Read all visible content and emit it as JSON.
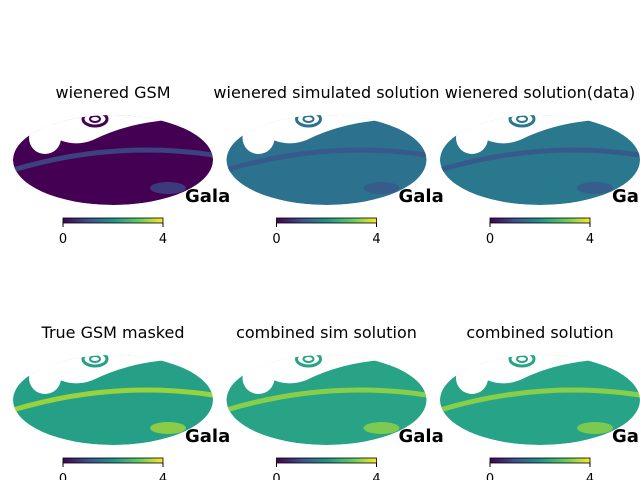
{
  "chart_data": [
    {
      "type": "map",
      "title": "wienered GSM",
      "fill": "#440154",
      "band": "#3b528b",
      "colorbar": {
        "lim": [
          0,
          4
        ],
        "ticks": [
          0,
          4
        ]
      },
      "annotation": "Gala"
    },
    {
      "type": "map",
      "title": "wienered simulated solution",
      "fill": "#2c728e",
      "band": "#3b528b",
      "colorbar": {
        "lim": [
          0,
          4
        ],
        "ticks": [
          0,
          4
        ]
      },
      "annotation": "Gala"
    },
    {
      "type": "map",
      "title": "wienered solution(data)",
      "fill": "#2a788e",
      "band": "#3b528b",
      "colorbar": {
        "lim": [
          0,
          4
        ],
        "ticks": [
          0,
          4
        ]
      },
      "annotation": "Gala"
    },
    {
      "type": "map",
      "title": "True GSM masked",
      "fill": "#25a087",
      "band": "#b5de2b",
      "colorbar": {
        "lim": [
          0,
          4
        ],
        "ticks": [
          0,
          4
        ]
      },
      "annotation": "Gala"
    },
    {
      "type": "map",
      "title": "combined sim solution",
      "fill": "#28a386",
      "band": "#a0da39",
      "colorbar": {
        "lim": [
          0,
          4
        ],
        "ticks": [
          0,
          4
        ]
      },
      "annotation": "Gala"
    },
    {
      "type": "map",
      "title": "combined solution",
      "fill": "#27a487",
      "band": "#a0da39",
      "colorbar": {
        "lim": [
          0,
          4
        ],
        "ticks": [
          0,
          4
        ]
      },
      "annotation": "Gala"
    }
  ]
}
